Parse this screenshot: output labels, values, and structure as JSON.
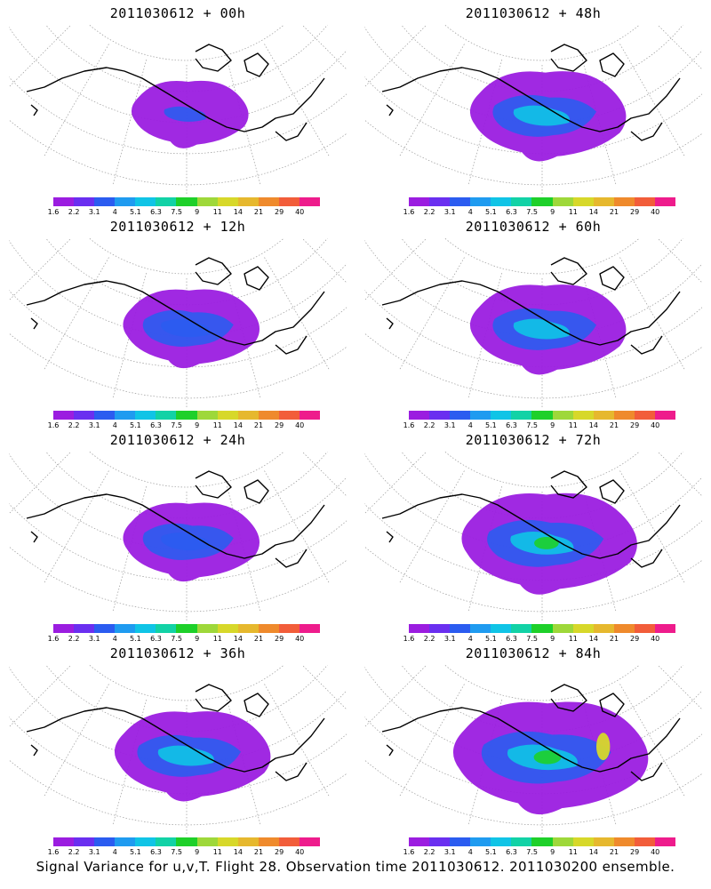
{
  "panels": [
    {
      "title": "2011030612 + 00h",
      "level": 1
    },
    {
      "title": "2011030612 + 48h",
      "level": 3
    },
    {
      "title": "2011030612 + 12h",
      "level": 2
    },
    {
      "title": "2011030612 + 60h",
      "level": 3
    },
    {
      "title": "2011030612 + 24h",
      "level": 2
    },
    {
      "title": "2011030612 + 72h",
      "level": 4
    },
    {
      "title": "2011030612 + 36h",
      "level": 3
    },
    {
      "title": "2011030612 + 84h",
      "level": 5
    }
  ],
  "colorbar": {
    "labels": [
      "1.6",
      "2.2",
      "3.1",
      "4",
      "5.1",
      "6.3",
      "7.5",
      "9",
      "11",
      "14",
      "21",
      "29",
      "40"
    ],
    "colors": [
      "#9b1de0",
      "#6a2ff0",
      "#2b5cf0",
      "#1f9bf0",
      "#10c4e6",
      "#12d2a6",
      "#1ed02a",
      "#9ed83a",
      "#d7d82a",
      "#e6b82e",
      "#ef8a2c",
      "#f25d3a",
      "#ee1c8c"
    ]
  },
  "footer": "Signal Variance for u,v,T. Flight 28. Observation time 2011030612. 2011030200 ensemble."
}
